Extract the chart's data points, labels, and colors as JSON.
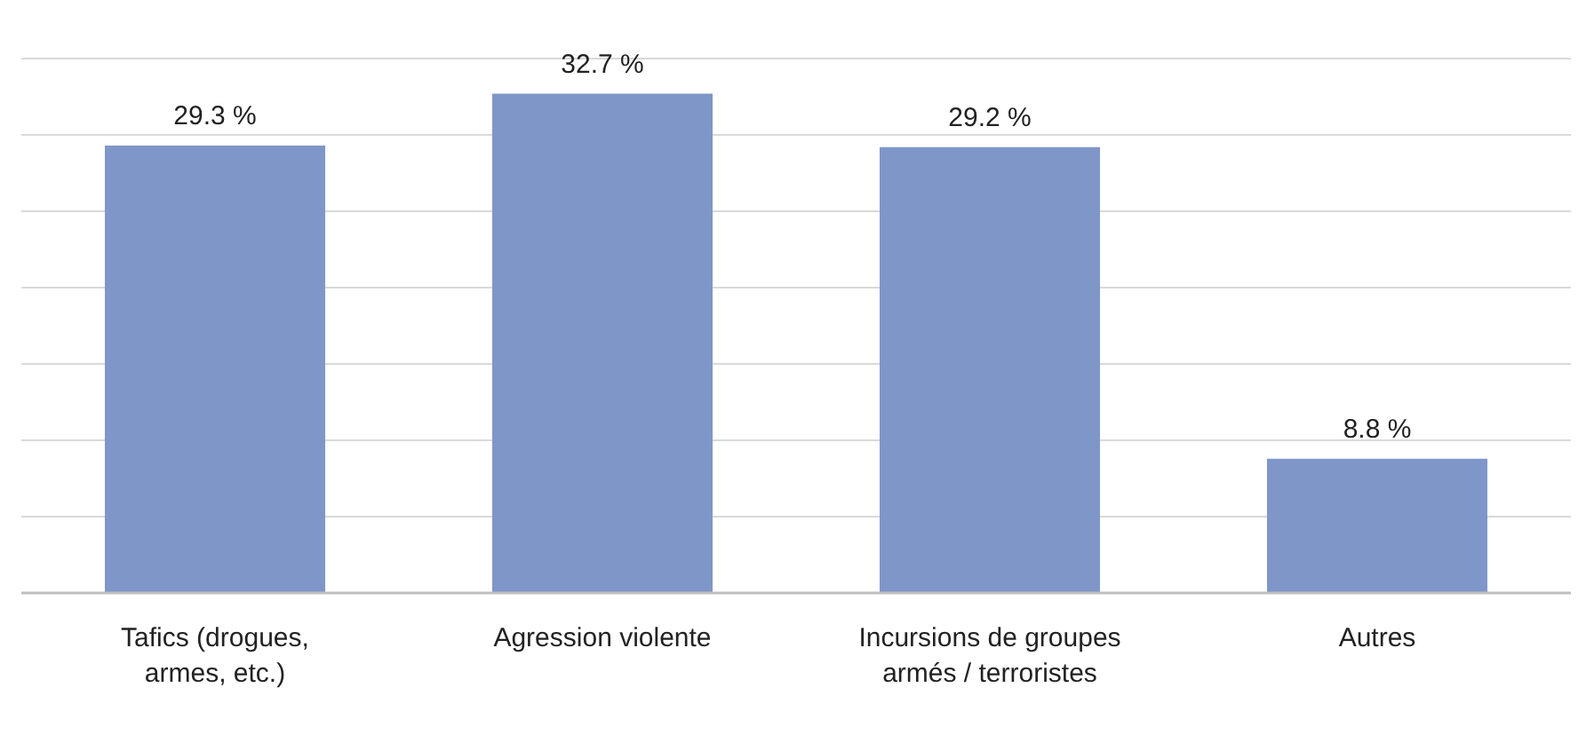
{
  "chart_data": {
    "type": "bar",
    "categories": [
      "Tafics (drogues, armes, etc.)",
      "Agression violente",
      "Incursions de groupes armés / terroristes",
      "Autres"
    ],
    "values": [
      29.3,
      32.7,
      29.2,
      8.8
    ],
    "value_labels": [
      "29.3 %",
      "32.7 %",
      "29.2 %",
      "8.8 %"
    ],
    "color": "#7f96c8",
    "grid": "y",
    "tick_labels": "x",
    "legend": false
  }
}
